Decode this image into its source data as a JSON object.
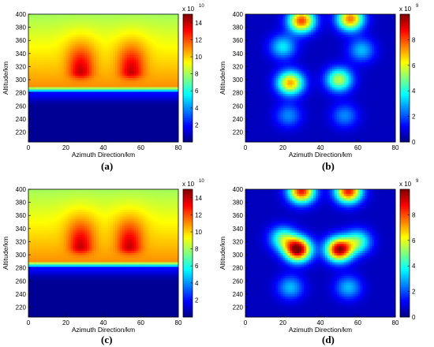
{
  "chart_data": [
    {
      "type": "heatmap",
      "label": "(a)",
      "xlabel": "Azimuth Direction/km",
      "ylabel": "Altitude/km",
      "xlim": [
        0,
        80
      ],
      "ylim": [
        205,
        400
      ],
      "xticks": [
        "0",
        "20",
        "40",
        "60",
        "80"
      ],
      "yticks": [
        "220",
        "240",
        "260",
        "280",
        "300",
        "320",
        "340",
        "360",
        "380",
        "400"
      ],
      "colorbar": {
        "multiplier": "x 10",
        "exponent": "10",
        "min": 0,
        "max": 15,
        "ticks": [
          "2",
          "4",
          "6",
          "8",
          "10",
          "12",
          "14"
        ]
      },
      "field": {
        "floor": 0.3,
        "surface_alt": 290,
        "surface_val": 11,
        "top_val": 8,
        "peaks": [
          {
            "x": 28,
            "y": 312,
            "value": 14.6
          },
          {
            "x": 55,
            "y": 312,
            "value": 14.6
          }
        ]
      }
    },
    {
      "type": "heatmap",
      "label": "(b)",
      "xlabel": "Azimuth Direction/km",
      "ylabel": "Altitude/km",
      "xlim": [
        0,
        80
      ],
      "ylim": [
        205,
        400
      ],
      "xticks": [
        "0",
        "20",
        "40",
        "60",
        "80"
      ],
      "yticks": [
        "220",
        "240",
        "260",
        "280",
        "300",
        "320",
        "340",
        "360",
        "380",
        "400"
      ],
      "colorbar": {
        "multiplier": "x 10",
        "exponent": "9",
        "min": 0,
        "max": 10,
        "ticks": [
          "0",
          "2",
          "4",
          "6",
          "8"
        ]
      },
      "blobs": [
        {
          "x": 24,
          "y": 295,
          "value": 6.5
        },
        {
          "x": 50,
          "y": 300,
          "value": 5.0
        },
        {
          "x": 30,
          "y": 390,
          "value": 7.5
        },
        {
          "x": 56,
          "y": 393,
          "value": 7.0
        },
        {
          "x": 20,
          "y": 350,
          "value": 3.0
        },
        {
          "x": 62,
          "y": 345,
          "value": 2.5
        },
        {
          "x": 23,
          "y": 245,
          "value": 2.0
        },
        {
          "x": 53,
          "y": 245,
          "value": 2.0
        }
      ]
    },
    {
      "type": "heatmap",
      "label": "(c)",
      "xlabel": "Azimuth Direction/km",
      "ylabel": "Altitude/km",
      "xlim": [
        0,
        80
      ],
      "ylim": [
        205,
        400
      ],
      "xticks": [
        "0",
        "20",
        "40",
        "60",
        "80"
      ],
      "yticks": [
        "220",
        "240",
        "260",
        "280",
        "300",
        "320",
        "340",
        "360",
        "380",
        "400"
      ],
      "colorbar": {
        "multiplier": "x 10",
        "exponent": "10",
        "min": 0,
        "max": 15,
        "ticks": [
          "2",
          "4",
          "6",
          "8",
          "10",
          "12",
          "14"
        ]
      },
      "field": {
        "floor": 0.3,
        "surface_alt": 290,
        "surface_val": 11,
        "top_val": 8,
        "peaks": [
          {
            "x": 28,
            "y": 312,
            "value": 14.6
          },
          {
            "x": 54,
            "y": 312,
            "value": 14.6
          }
        ]
      }
    },
    {
      "type": "heatmap",
      "label": "(d)",
      "xlabel": "Azimuth Direction/km",
      "ylabel": "Altitude/km",
      "xlim": [
        0,
        80
      ],
      "ylim": [
        205,
        400
      ],
      "xticks": [
        "0",
        "20",
        "40",
        "60",
        "80"
      ],
      "yticks": [
        "220",
        "240",
        "260",
        "280",
        "300",
        "320",
        "340",
        "360",
        "380",
        "400"
      ],
      "colorbar": {
        "multiplier": "x 10",
        "exponent": "9",
        "min": 0,
        "max": 10,
        "ticks": [
          "0",
          "2",
          "4",
          "6",
          "8"
        ]
      },
      "blobs": [
        {
          "x": 28,
          "y": 308,
          "value": 9.5
        },
        {
          "x": 50,
          "y": 308,
          "value": 9.0
        },
        {
          "x": 20,
          "y": 325,
          "value": 4.0
        },
        {
          "x": 60,
          "y": 320,
          "value": 4.0
        },
        {
          "x": 30,
          "y": 397,
          "value": 8.0
        },
        {
          "x": 55,
          "y": 397,
          "value": 8.0
        },
        {
          "x": 24,
          "y": 250,
          "value": 2.5
        },
        {
          "x": 55,
          "y": 250,
          "value": 2.5
        }
      ]
    }
  ]
}
